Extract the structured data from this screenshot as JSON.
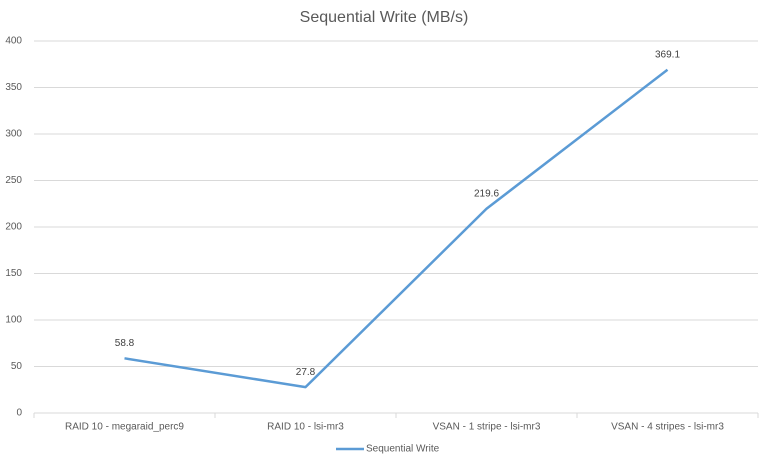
{
  "chart_data": {
    "type": "line",
    "title": "Sequential Write (MB/s)",
    "categories": [
      "RAID 10 - megaraid_perc9",
      "RAID 10 - lsi-mr3",
      "VSAN - 1 stripe - lsi-mr3",
      "VSAN - 4 stripes - lsi-mr3"
    ],
    "series": [
      {
        "name": "Sequential Write",
        "color": "#5b9bd5",
        "values": [
          58.8,
          27.8,
          219.6,
          369.1
        ]
      }
    ],
    "ylim": [
      0,
      400
    ],
    "yticks": [
      0,
      50,
      100,
      150,
      200,
      250,
      300,
      350,
      400
    ],
    "grid": true,
    "legend": "bottom"
  }
}
